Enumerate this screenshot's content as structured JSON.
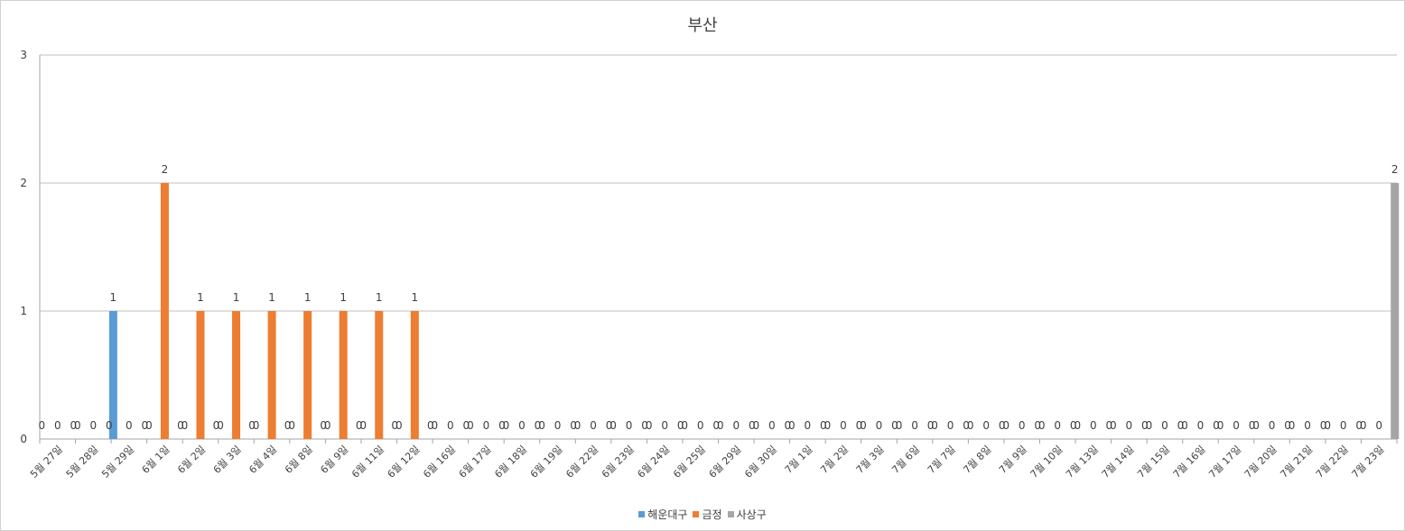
{
  "chart_data": {
    "type": "bar",
    "title": "부산",
    "xlabel": "",
    "ylabel": "",
    "ylim": [
      0,
      3
    ],
    "yticks": [
      0,
      1,
      2,
      3
    ],
    "grid": true,
    "legend_position": "bottom",
    "categories": [
      "5월 27일",
      "5월 28일",
      "5월 29일",
      "6월 1일",
      "6월 2일",
      "6월 3일",
      "6월 4일",
      "6월 8일",
      "6월 9일",
      "6월 11일",
      "6월 12일",
      "6월 16일",
      "6월 17일",
      "6월 18일",
      "6월 19일",
      "6월 22일",
      "6월 23일",
      "6월 24일",
      "6월 25일",
      "6월 29일",
      "6월 30일",
      "7월 1일",
      "7월 2일",
      "7월 3일",
      "7월 6일",
      "7월 7일",
      "7월 8일",
      "7월 9일",
      "7월 10일",
      "7월 13일",
      "7월 14일",
      "7월 15일",
      "7월 16일",
      "7월 17일",
      "7월 20일",
      "7월 21일",
      "7월 22일",
      "7월 23일"
    ],
    "series": [
      {
        "name": "해운대구",
        "color": "#5b9bd5",
        "values": [
          0,
          0,
          1,
          0,
          0,
          0,
          0,
          0,
          0,
          0,
          0,
          0,
          0,
          0,
          0,
          0,
          0,
          0,
          0,
          0,
          0,
          0,
          0,
          0,
          0,
          0,
          0,
          0,
          0,
          0,
          0,
          0,
          0,
          0,
          0,
          0,
          0,
          0
        ]
      },
      {
        "name": "금정",
        "color": "#ed7d31",
        "values": [
          0,
          0,
          0,
          2,
          1,
          1,
          1,
          1,
          1,
          1,
          1,
          0,
          0,
          0,
          0,
          0,
          0,
          0,
          0,
          0,
          0,
          0,
          0,
          0,
          0,
          0,
          0,
          0,
          0,
          0,
          0,
          0,
          0,
          0,
          0,
          0,
          0,
          0
        ]
      },
      {
        "name": "사상구",
        "color": "#a5a5a5",
        "values": [
          0,
          0,
          0,
          0,
          0,
          0,
          0,
          0,
          0,
          0,
          0,
          0,
          0,
          0,
          0,
          0,
          0,
          0,
          0,
          0,
          0,
          0,
          0,
          0,
          0,
          0,
          0,
          0,
          0,
          0,
          0,
          0,
          0,
          0,
          0,
          0,
          0,
          2
        ]
      }
    ]
  }
}
